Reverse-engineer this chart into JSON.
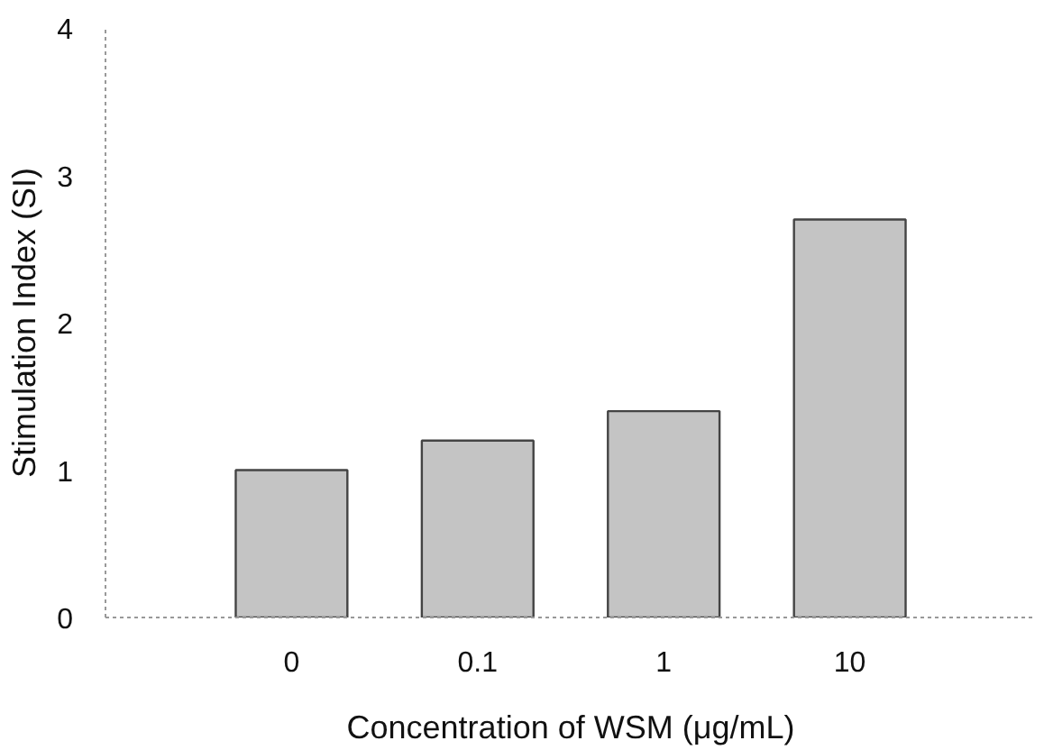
{
  "chart_data": {
    "type": "bar",
    "xlabel": "Concentration of WSM (μg/mL)",
    "ylabel": "Stimulation Index (SI)",
    "categories": [
      "0",
      "0.1",
      "1",
      "10"
    ],
    "values": [
      1.0,
      1.2,
      1.4,
      2.7
    ],
    "color": "#c4c4c4",
    "ylim": [
      0,
      4
    ],
    "yticks": [
      0,
      1,
      2,
      3,
      4
    ],
    "grid": false
  }
}
